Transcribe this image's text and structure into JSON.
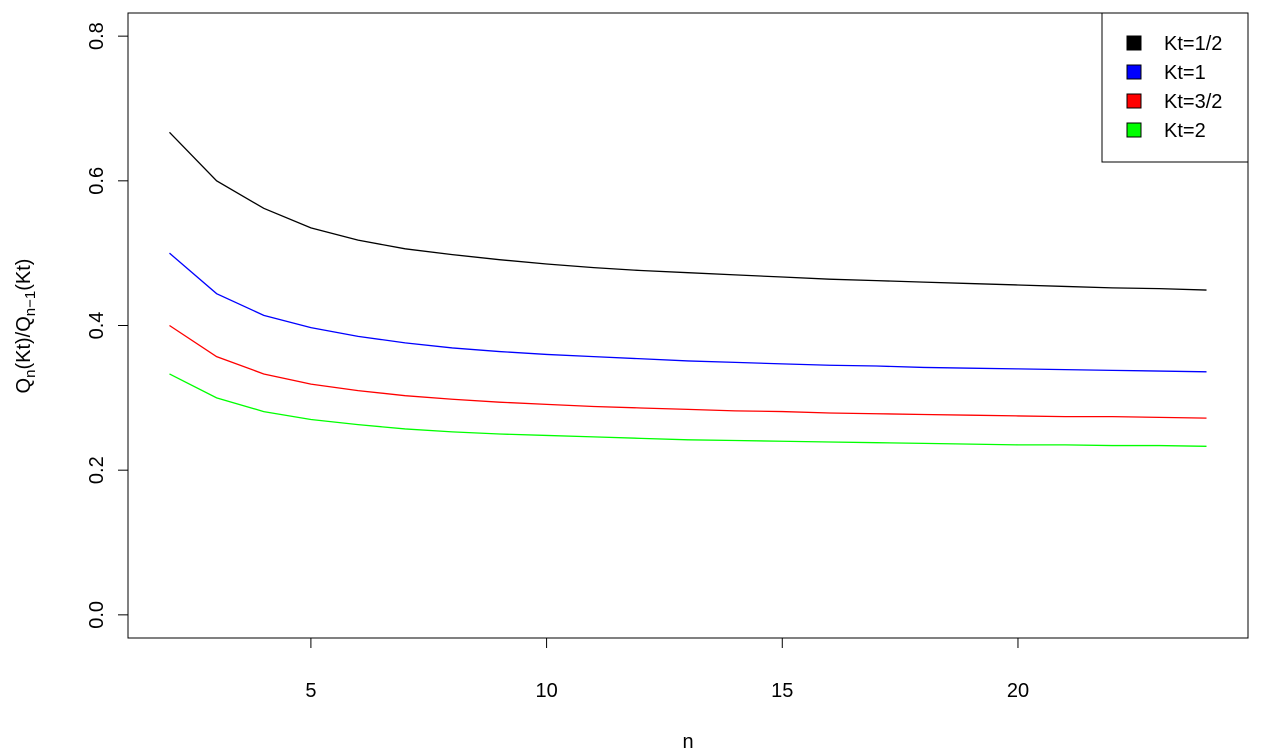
{
  "chart_data": {
    "type": "line",
    "x_label": "n",
    "y_label": [
      "Q",
      "n",
      "(Kt)/Q",
      "n−1",
      "(Kt)"
    ],
    "x": [
      2,
      3,
      4,
      5,
      6,
      7,
      8,
      9,
      10,
      11,
      12,
      13,
      14,
      15,
      16,
      17,
      18,
      19,
      20,
      21,
      22,
      23,
      24
    ],
    "series": [
      {
        "name": "Kt=1/2",
        "color": "#000000",
        "values": [
          0.667,
          0.6,
          0.562,
          0.535,
          0.518,
          0.506,
          0.498,
          0.491,
          0.485,
          0.48,
          0.476,
          0.473,
          0.47,
          0.467,
          0.464,
          0.462,
          0.46,
          0.458,
          0.456,
          0.454,
          0.452,
          0.451,
          0.449
        ]
      },
      {
        "name": "Kt=1",
        "color": "#0000ff",
        "values": [
          0.5,
          0.444,
          0.414,
          0.397,
          0.385,
          0.376,
          0.369,
          0.364,
          0.36,
          0.357,
          0.354,
          0.351,
          0.349,
          0.347,
          0.345,
          0.344,
          0.342,
          0.341,
          0.34,
          0.339,
          0.338,
          0.337,
          0.336
        ]
      },
      {
        "name": "Kt=3/2",
        "color": "#ff0000",
        "values": [
          0.4,
          0.357,
          0.333,
          0.319,
          0.31,
          0.303,
          0.298,
          0.294,
          0.291,
          0.288,
          0.286,
          0.284,
          0.282,
          0.281,
          0.279,
          0.278,
          0.277,
          0.276,
          0.275,
          0.274,
          0.274,
          0.273,
          0.272
        ]
      },
      {
        "name": "Kt=2",
        "color": "#00ff00",
        "values": [
          0.333,
          0.3,
          0.281,
          0.27,
          0.263,
          0.257,
          0.253,
          0.25,
          0.248,
          0.246,
          0.244,
          0.242,
          0.241,
          0.24,
          0.239,
          0.238,
          0.237,
          0.236,
          0.235,
          0.235,
          0.234,
          0.234,
          0.233
        ]
      }
    ],
    "xlim": [
      1.12,
      24.88
    ],
    "xticks": [
      5,
      10,
      15,
      20
    ],
    "ylim": [
      -0.032,
      0.832
    ],
    "yticks": [
      {
        "value": 0,
        "label": "0.0"
      },
      0.2,
      0.4,
      0.6,
      0.8
    ],
    "legend": "top-right",
    "grid": false
  }
}
